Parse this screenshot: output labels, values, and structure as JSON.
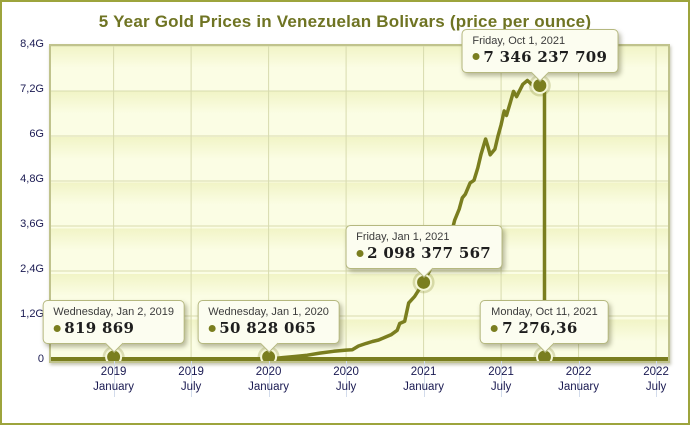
{
  "window": {
    "border_color": "#9da43c",
    "background": "#ffffff"
  },
  "chart_data": {
    "type": "line",
    "title": "5 Year Gold Prices in Venezuelan Bolivars (price per ounce)",
    "title_color": "#6f7423",
    "xlabel": "",
    "ylabel": "",
    "value_unit": "G (billions of bolivars per ounce)",
    "y_max_g": 8.4,
    "ylim": [
      0,
      8400000000
    ],
    "grid": true,
    "legend": "none",
    "line_color": "#7a7e1f",
    "plot_bg_color": "#fbfde4",
    "grid_color": "#d8dbae",
    "x_domain": [
      2018.596,
      2022.577
    ],
    "y_ticks": [
      {
        "label": "8,4G",
        "value_g": 8.4
      },
      {
        "label": "7,2G",
        "value_g": 7.2
      },
      {
        "label": "6G",
        "value_g": 6.0
      },
      {
        "label": "4,8G",
        "value_g": 4.8
      },
      {
        "label": "3,6G",
        "value_g": 3.6
      },
      {
        "label": "2,4G",
        "value_g": 2.4
      },
      {
        "label": "1,2G",
        "value_g": 1.2
      },
      {
        "label": "0",
        "value_g": 0
      }
    ],
    "x_ticks": [
      {
        "year": "2019",
        "month": "January",
        "t": 2019.0
      },
      {
        "year": "2019",
        "month": "July",
        "t": 2019.5
      },
      {
        "year": "2020",
        "month": "January",
        "t": 2020.0
      },
      {
        "year": "2020",
        "month": "July",
        "t": 2020.5
      },
      {
        "year": "2021",
        "month": "January",
        "t": 2021.0
      },
      {
        "year": "2021",
        "month": "July",
        "t": 2021.5
      },
      {
        "year": "2022",
        "month": "January",
        "t": 2022.0
      },
      {
        "year": "2022",
        "month": "July",
        "t": 2022.5
      }
    ],
    "series": [
      {
        "name": "Gold price in VEB",
        "color": "#7a7e1f",
        "points": [
          [
            2018.596,
            0.0006
          ],
          [
            2018.8,
            0.0007
          ],
          [
            2019.0,
            0.00082
          ],
          [
            2019.3,
            0.003
          ],
          [
            2019.5,
            0.006
          ],
          [
            2019.7,
            0.012
          ],
          [
            2019.85,
            0.022
          ],
          [
            2019.95,
            0.04
          ],
          [
            2020.0,
            0.0508
          ],
          [
            2020.09,
            0.09
          ],
          [
            2020.17,
            0.12
          ],
          [
            2020.25,
            0.155
          ],
          [
            2020.33,
            0.21
          ],
          [
            2020.42,
            0.26
          ],
          [
            2020.5,
            0.29
          ],
          [
            2020.54,
            0.3
          ],
          [
            2020.58,
            0.4
          ],
          [
            2020.63,
            0.47
          ],
          [
            2020.67,
            0.52
          ],
          [
            2020.71,
            0.56
          ],
          [
            2020.75,
            0.63
          ],
          [
            2020.79,
            0.7
          ],
          [
            2020.83,
            0.82
          ],
          [
            2020.846,
            1.0
          ],
          [
            2020.878,
            1.06
          ],
          [
            2020.904,
            1.55
          ],
          [
            2020.942,
            1.72
          ],
          [
            2021.0,
            2.098
          ],
          [
            2021.05,
            2.5
          ],
          [
            2021.09,
            2.85
          ],
          [
            2021.13,
            3.2
          ],
          [
            2021.165,
            3.55
          ],
          [
            2021.18,
            3.42
          ],
          [
            2021.2,
            3.75
          ],
          [
            2021.23,
            4.05
          ],
          [
            2021.25,
            4.35
          ],
          [
            2021.27,
            4.45
          ],
          [
            2021.3,
            4.75
          ],
          [
            2021.325,
            4.82
          ],
          [
            2021.35,
            5.15
          ],
          [
            2021.37,
            5.5
          ],
          [
            2021.4,
            5.92
          ],
          [
            2021.415,
            5.72
          ],
          [
            2021.43,
            5.5
          ],
          [
            2021.46,
            5.65
          ],
          [
            2021.48,
            6.0
          ],
          [
            2021.5,
            6.3
          ],
          [
            2021.52,
            6.67
          ],
          [
            2021.535,
            6.55
          ],
          [
            2021.56,
            6.9
          ],
          [
            2021.58,
            7.19
          ],
          [
            2021.6,
            7.05
          ],
          [
            2021.64,
            7.38
          ],
          [
            2021.67,
            7.48
          ],
          [
            2021.71,
            7.33
          ],
          [
            2021.75,
            7.346
          ],
          [
            2021.77,
            7.42
          ],
          [
            2021.78,
            7.42
          ],
          [
            2021.78,
            7.3e-06
          ],
          [
            2022.0,
            7.3e-06
          ],
          [
            2022.577,
            7.3e-06
          ]
        ]
      }
    ],
    "annotations": [
      {
        "t": 2019.0,
        "v_g": 0.00082,
        "date": "Wednesday, Jan 2, 2019",
        "value": "819 869"
      },
      {
        "t": 2020.0,
        "v_g": 0.0508,
        "date": "Wednesday, Jan 1, 2020",
        "value": "50 828 065"
      },
      {
        "t": 2021.0,
        "v_g": 2.098,
        "date": "Friday, Jan 1, 2021",
        "value": "2 098 377 567"
      },
      {
        "t": 2021.75,
        "v_g": 7.346,
        "date": "Friday, Oct 1, 2021",
        "value": "7 346 237 709"
      },
      {
        "t": 2021.78,
        "v_g": 7.3e-06,
        "date": "Monday, Oct 11, 2021",
        "value": "7 276,36"
      }
    ]
  }
}
